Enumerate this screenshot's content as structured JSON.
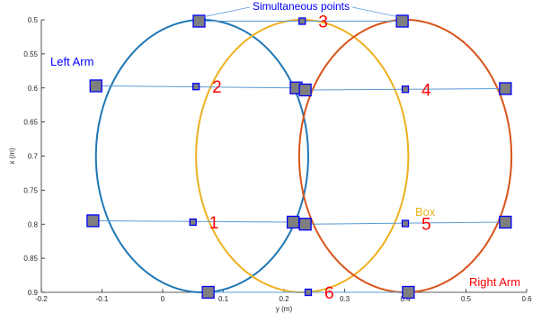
{
  "chart_data": {
    "type": "line",
    "xlabel": "y (m)",
    "ylabel": "x (m)",
    "xlim": [
      -0.2,
      0.6
    ],
    "ylim": [
      0.9,
      0.5
    ],
    "y_axis_reversed": true,
    "x_ticks": [
      "-0.2",
      "-0.1",
      "0",
      "0.1",
      "0.2",
      "0.3",
      "0.4",
      "0.5",
      "0.6"
    ],
    "y_ticks": [
      "0.5",
      "0.55",
      "0.6",
      "0.65",
      "0.7",
      "0.75",
      "0.8",
      "0.85",
      "0.9"
    ],
    "grid": false,
    "series": [
      {
        "name": "Left Arm",
        "shape": "ellipse",
        "center": [
          0.065,
          0.7
        ],
        "radius": [
          0.175,
          0.2
        ],
        "color": "#1f77b4"
      },
      {
        "name": "Box",
        "shape": "ellipse",
        "center": [
          0.23,
          0.7
        ],
        "radius": [
          0.175,
          0.2
        ],
        "color": "#edb120"
      },
      {
        "name": "Right Arm",
        "shape": "ellipse",
        "center": [
          0.4,
          0.7
        ],
        "radius": [
          0.175,
          0.2
        ],
        "color": "#d95319"
      }
    ],
    "sync_lines": [
      {
        "label": "1",
        "left": [
          -0.115,
          0.795
        ],
        "box": [
          0.05,
          0.797
        ],
        "right": [
          0.215,
          0.797
        ]
      },
      {
        "label": "2",
        "left": [
          -0.11,
          0.597
        ],
        "box": [
          0.055,
          0.598
        ],
        "right": [
          0.22,
          0.6
        ]
      },
      {
        "label": "3",
        "left": [
          0.06,
          0.502
        ],
        "box": [
          0.23,
          0.502
        ],
        "right": [
          0.395,
          0.502
        ]
      },
      {
        "label": "4",
        "left": [
          0.235,
          0.603
        ],
        "box": [
          0.4,
          0.602
        ],
        "right": [
          0.565,
          0.601
        ]
      },
      {
        "label": "5",
        "left": [
          0.235,
          0.8
        ],
        "box": [
          0.4,
          0.799
        ],
        "right": [
          0.565,
          0.797
        ]
      },
      {
        "label": "6",
        "left": [
          0.075,
          0.9
        ],
        "box": [
          0.24,
          0.9
        ],
        "right": [
          0.405,
          0.9
        ]
      }
    ],
    "series_labels": [
      "Left Arm",
      "Box",
      "Right Arm"
    ],
    "callout": "Simultaneous points",
    "colors": {
      "marker_fill": "#7f7f7f",
      "marker_edge": "#0000ff",
      "sync_line": "#5b9bd5",
      "number_labels": "#ff0000",
      "left_label": "#0000ff",
      "right_label": "#ff0000",
      "box_label": "#edb120",
      "callout": "#0000ff"
    }
  }
}
